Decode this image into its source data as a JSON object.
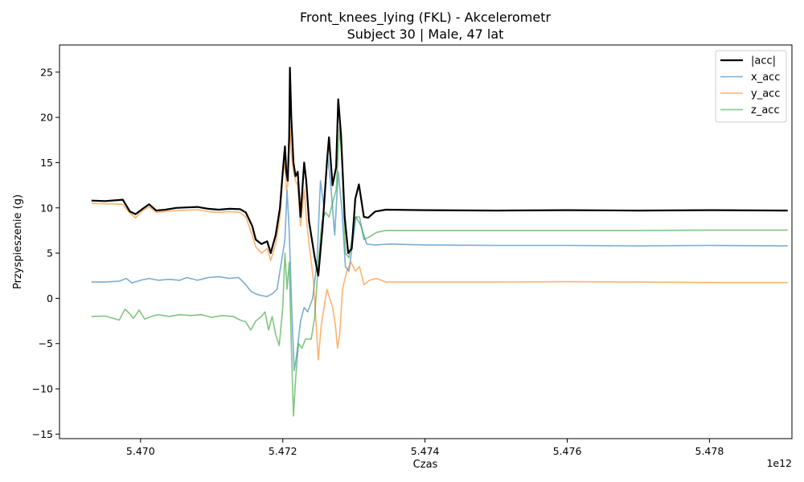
{
  "chart_data": {
    "type": "line",
    "title": "Front_knees_lying (FKL) - Akcelerometr",
    "subtitle": "Subject 30 | Male, 47 lat",
    "xlabel": "Czas",
    "ylabel": "Przyspieszenie (g)",
    "x_offset_label": "1e12",
    "xlim": [
      5.46886,
      5.47916
    ],
    "ylim": [
      -15.5,
      28.0
    ],
    "x_ticks": [
      5.47,
      5.472,
      5.474,
      5.476,
      5.478
    ],
    "x_tick_labels": [
      "5.470",
      "5.472",
      "5.474",
      "5.476",
      "5.478"
    ],
    "y_ticks": [
      -15,
      -10,
      -5,
      0,
      5,
      10,
      15,
      20,
      25
    ],
    "y_tick_labels": [
      "−15",
      "−10",
      "−5",
      "0",
      "5",
      "10",
      "15",
      "20",
      "25"
    ],
    "legend_position": "top-right",
    "grid": false,
    "series": [
      {
        "name": "|acc|",
        "color": "#000000",
        "width": 2.2,
        "opacity": 1,
        "points": [
          [
            5.46931,
            10.8
          ],
          [
            5.4695,
            10.75
          ],
          [
            5.46975,
            10.9
          ],
          [
            5.46985,
            9.6
          ],
          [
            5.46993,
            9.3
          ],
          [
            5.47003,
            9.9
          ],
          [
            5.47012,
            10.4
          ],
          [
            5.47022,
            9.7
          ],
          [
            5.47035,
            9.8
          ],
          [
            5.4705,
            10.0
          ],
          [
            5.47065,
            10.05
          ],
          [
            5.4708,
            10.1
          ],
          [
            5.47095,
            9.9
          ],
          [
            5.4711,
            9.8
          ],
          [
            5.47125,
            9.9
          ],
          [
            5.4714,
            9.85
          ],
          [
            5.47148,
            9.5
          ],
          [
            5.47157,
            8.0
          ],
          [
            5.47162,
            6.5
          ],
          [
            5.4717,
            6.0
          ],
          [
            5.47178,
            6.3
          ],
          [
            5.47183,
            5.0
          ],
          [
            5.4719,
            7.0
          ],
          [
            5.47196,
            10.0
          ],
          [
            5.472,
            14.0
          ],
          [
            5.47203,
            16.8
          ],
          [
            5.47205,
            14.0
          ],
          [
            5.47207,
            13.0
          ],
          [
            5.47209,
            18.0
          ],
          [
            5.4721,
            25.5
          ],
          [
            5.47212,
            20.0
          ],
          [
            5.47215,
            15.0
          ],
          [
            5.47218,
            13.5
          ],
          [
            5.47221,
            14.0
          ],
          [
            5.47225,
            9.0
          ],
          [
            5.4723,
            15.0
          ],
          [
            5.47233,
            13.0
          ],
          [
            5.47237,
            8.5
          ],
          [
            5.47245,
            4.5
          ],
          [
            5.4725,
            2.5
          ],
          [
            5.47256,
            8.0
          ],
          [
            5.47262,
            15.0
          ],
          [
            5.47265,
            17.8
          ],
          [
            5.4727,
            12.5
          ],
          [
            5.47275,
            14.5
          ],
          [
            5.47278,
            22.0
          ],
          [
            5.47282,
            18.0
          ],
          [
            5.47287,
            9.0
          ],
          [
            5.47292,
            5.0
          ],
          [
            5.47297,
            5.5
          ],
          [
            5.47302,
            11.0
          ],
          [
            5.47307,
            12.6
          ],
          [
            5.47314,
            9.0
          ],
          [
            5.4732,
            8.9
          ],
          [
            5.4733,
            9.6
          ],
          [
            5.47345,
            9.8
          ],
          [
            5.474,
            9.75
          ],
          [
            5.475,
            9.7
          ],
          [
            5.476,
            9.75
          ],
          [
            5.477,
            9.7
          ],
          [
            5.478,
            9.75
          ],
          [
            5.4791,
            9.7
          ]
        ]
      },
      {
        "name": "x_acc",
        "color": "#1f77b4",
        "width": 1.6,
        "opacity": 0.6,
        "points": [
          [
            5.46931,
            1.8
          ],
          [
            5.4695,
            1.8
          ],
          [
            5.4697,
            1.9
          ],
          [
            5.4698,
            2.2
          ],
          [
            5.46988,
            1.7
          ],
          [
            5.47,
            2.0
          ],
          [
            5.47012,
            2.2
          ],
          [
            5.47025,
            2.0
          ],
          [
            5.4704,
            2.1
          ],
          [
            5.47055,
            2.0
          ],
          [
            5.47065,
            2.3
          ],
          [
            5.4708,
            2.0
          ],
          [
            5.47095,
            2.3
          ],
          [
            5.4711,
            2.4
          ],
          [
            5.47125,
            2.2
          ],
          [
            5.47138,
            2.3
          ],
          [
            5.47147,
            1.6
          ],
          [
            5.47155,
            0.8
          ],
          [
            5.47162,
            0.5
          ],
          [
            5.4717,
            0.3
          ],
          [
            5.47178,
            0.2
          ],
          [
            5.47185,
            0.5
          ],
          [
            5.47192,
            1.0
          ],
          [
            5.47198,
            4.0
          ],
          [
            5.47203,
            6.5
          ],
          [
            5.47206,
            12.0
          ],
          [
            5.47209,
            7.5
          ],
          [
            5.47213,
            -2.0
          ],
          [
            5.47216,
            -8.0
          ],
          [
            5.4722,
            -6.0
          ],
          [
            5.47225,
            -2.5
          ],
          [
            5.4723,
            -1.0
          ],
          [
            5.47235,
            -1.5
          ],
          [
            5.47242,
            0.0
          ],
          [
            5.47248,
            4.0
          ],
          [
            5.47253,
            13.0
          ],
          [
            5.47258,
            10.0
          ],
          [
            5.47263,
            16.0
          ],
          [
            5.47268,
            12.0
          ],
          [
            5.47273,
            7.0
          ],
          [
            5.47278,
            14.0
          ],
          [
            5.47283,
            10.0
          ],
          [
            5.47288,
            3.5
          ],
          [
            5.47293,
            3.0
          ],
          [
            5.47298,
            6.0
          ],
          [
            5.47303,
            9.0
          ],
          [
            5.4731,
            8.0
          ],
          [
            5.47318,
            6.0
          ],
          [
            5.4733,
            5.9
          ],
          [
            5.4735,
            6.0
          ],
          [
            5.474,
            5.9
          ],
          [
            5.475,
            5.85
          ],
          [
            5.476,
            5.85
          ],
          [
            5.477,
            5.8
          ],
          [
            5.478,
            5.85
          ],
          [
            5.4791,
            5.8
          ]
        ]
      },
      {
        "name": "y_acc",
        "color": "#ff7f0e",
        "width": 1.6,
        "opacity": 0.6,
        "points": [
          [
            5.46931,
            10.5
          ],
          [
            5.4695,
            10.45
          ],
          [
            5.46975,
            10.4
          ],
          [
            5.46985,
            9.4
          ],
          [
            5.46993,
            8.9
          ],
          [
            5.47003,
            9.7
          ],
          [
            5.47012,
            10.1
          ],
          [
            5.47022,
            9.5
          ],
          [
            5.47035,
            9.6
          ],
          [
            5.4705,
            9.7
          ],
          [
            5.47065,
            9.75
          ],
          [
            5.4708,
            9.8
          ],
          [
            5.47095,
            9.6
          ],
          [
            5.4711,
            9.5
          ],
          [
            5.47125,
            9.6
          ],
          [
            5.4714,
            9.5
          ],
          [
            5.47148,
            9.0
          ],
          [
            5.47157,
            7.0
          ],
          [
            5.47162,
            5.7
          ],
          [
            5.4717,
            5.0
          ],
          [
            5.47178,
            5.5
          ],
          [
            5.47183,
            4.2
          ],
          [
            5.4719,
            6.0
          ],
          [
            5.47196,
            9.0
          ],
          [
            5.472,
            13.5
          ],
          [
            5.47203,
            15.0
          ],
          [
            5.47205,
            12.0
          ],
          [
            5.47207,
            12.5
          ],
          [
            5.47209,
            17.0
          ],
          [
            5.4721,
            19.0
          ],
          [
            5.47212,
            16.0
          ],
          [
            5.47215,
            14.0
          ],
          [
            5.47218,
            13.0
          ],
          [
            5.47221,
            12.5
          ],
          [
            5.47225,
            8.0
          ],
          [
            5.4723,
            12.0
          ],
          [
            5.47233,
            9.0
          ],
          [
            5.47237,
            6.0
          ],
          [
            5.47243,
            2.0
          ],
          [
            5.47247,
            -3.0
          ],
          [
            5.4725,
            -6.8
          ],
          [
            5.47254,
            -3.0
          ],
          [
            5.47258,
            -1.0
          ],
          [
            5.47262,
            1.0
          ],
          [
            5.47266,
            0.0
          ],
          [
            5.4727,
            -1.0
          ],
          [
            5.47274,
            -3.0
          ],
          [
            5.47277,
            -5.5
          ],
          [
            5.4728,
            -4.0
          ],
          [
            5.47284,
            1.0
          ],
          [
            5.4729,
            3.0
          ],
          [
            5.47296,
            4.0
          ],
          [
            5.47302,
            3.0
          ],
          [
            5.47308,
            3.5
          ],
          [
            5.47314,
            1.5
          ],
          [
            5.47322,
            2.0
          ],
          [
            5.47332,
            2.2
          ],
          [
            5.47345,
            1.8
          ],
          [
            5.474,
            1.8
          ],
          [
            5.475,
            1.8
          ],
          [
            5.476,
            1.85
          ],
          [
            5.477,
            1.8
          ],
          [
            5.478,
            1.75
          ],
          [
            5.4791,
            1.75
          ]
        ]
      },
      {
        "name": "z_acc",
        "color": "#2ca02c",
        "width": 1.6,
        "opacity": 0.6,
        "points": [
          [
            5.46931,
            -2.0
          ],
          [
            5.4695,
            -1.95
          ],
          [
            5.4697,
            -2.4
          ],
          [
            5.46978,
            -1.2
          ],
          [
            5.46985,
            -1.7
          ],
          [
            5.4699,
            -2.2
          ],
          [
            5.46998,
            -1.3
          ],
          [
            5.47006,
            -2.3
          ],
          [
            5.47015,
            -2.0
          ],
          [
            5.47025,
            -1.8
          ],
          [
            5.4704,
            -2.0
          ],
          [
            5.47055,
            -1.8
          ],
          [
            5.4707,
            -1.9
          ],
          [
            5.47085,
            -1.8
          ],
          [
            5.471,
            -2.1
          ],
          [
            5.47115,
            -1.9
          ],
          [
            5.4713,
            -2.0
          ],
          [
            5.4714,
            -2.4
          ],
          [
            5.47148,
            -2.6
          ],
          [
            5.47155,
            -3.5
          ],
          [
            5.47162,
            -2.5
          ],
          [
            5.4717,
            -2.0
          ],
          [
            5.47175,
            -1.5
          ],
          [
            5.4718,
            -3.5
          ],
          [
            5.47185,
            -2.0
          ],
          [
            5.4719,
            -4.0
          ],
          [
            5.47195,
            -5.2
          ],
          [
            5.472,
            -1.0
          ],
          [
            5.47203,
            5.0
          ],
          [
            5.47206,
            1.0
          ],
          [
            5.47209,
            4.0
          ],
          [
            5.47212,
            -5.0
          ],
          [
            5.47215,
            -13.0
          ],
          [
            5.47218,
            -9.0
          ],
          [
            5.47222,
            -5.0
          ],
          [
            5.47227,
            -5.5
          ],
          [
            5.47232,
            -4.5
          ],
          [
            5.4724,
            -4.5
          ],
          [
            5.47245,
            -2.0
          ],
          [
            5.4725,
            4.0
          ],
          [
            5.47255,
            8.5
          ],
          [
            5.4726,
            9.5
          ],
          [
            5.47265,
            9.0
          ],
          [
            5.4727,
            10.5
          ],
          [
            5.47275,
            12.0
          ],
          [
            5.4728,
            19.0
          ],
          [
            5.47284,
            14.0
          ],
          [
            5.47288,
            5.0
          ],
          [
            5.47293,
            4.5
          ],
          [
            5.47298,
            7.0
          ],
          [
            5.47302,
            9.0
          ],
          [
            5.47308,
            9.0
          ],
          [
            5.47314,
            6.5
          ],
          [
            5.47322,
            6.8
          ],
          [
            5.47332,
            7.3
          ],
          [
            5.47345,
            7.5
          ],
          [
            5.474,
            7.5
          ],
          [
            5.475,
            7.5
          ],
          [
            5.476,
            7.5
          ],
          [
            5.477,
            7.5
          ],
          [
            5.478,
            7.55
          ],
          [
            5.4791,
            7.55
          ]
        ]
      }
    ]
  }
}
